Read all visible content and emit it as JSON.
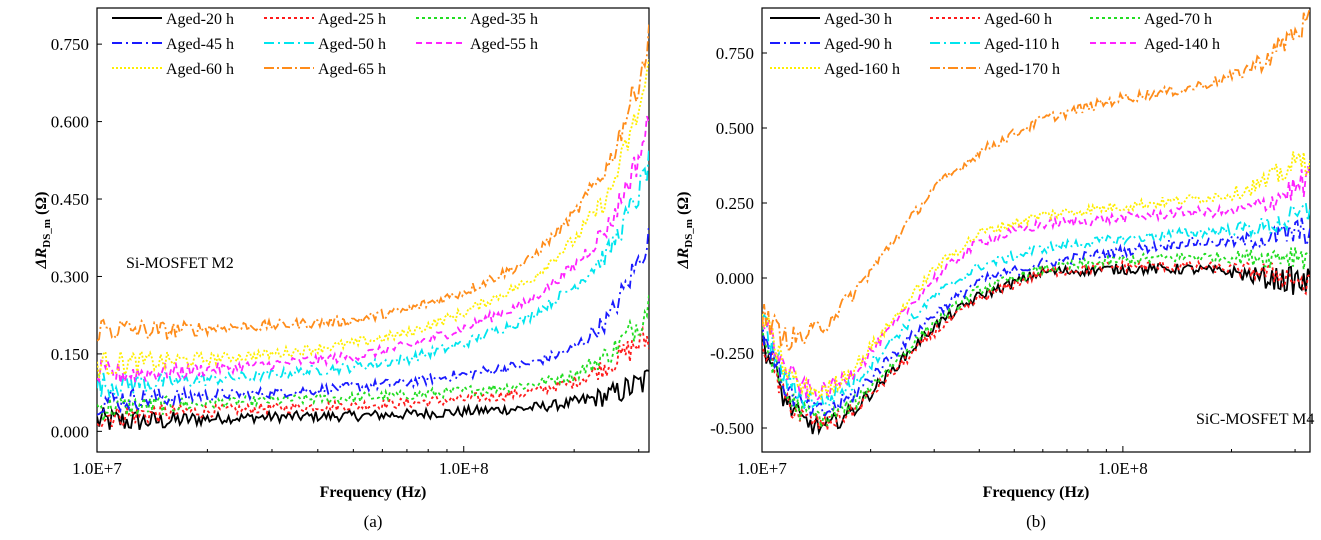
{
  "chart_data": [
    {
      "type": "line",
      "caption": "(a)",
      "xlabel": "Frequency (Hz)",
      "ylabel": "ΔR",
      "ylabel_sub": "DS_m",
      "ylabel_unit": " (Ω)",
      "xscale": "log",
      "xlim": [
        10000000,
        320000000
      ],
      "ylim": [
        -0.04,
        0.82
      ],
      "xticks": [
        {
          "v": 10000000,
          "label": "1.0E+7"
        },
        {
          "v": 100000000,
          "label": "1.0E+8"
        }
      ],
      "yticks": [
        {
          "v": 0.0,
          "label": "0.000"
        },
        {
          "v": 0.15,
          "label": "0.150"
        },
        {
          "v": 0.3,
          "label": "0.300"
        },
        {
          "v": 0.45,
          "label": "0.450"
        },
        {
          "v": 0.6,
          "label": "0.600"
        },
        {
          "v": 0.75,
          "label": "0.750"
        }
      ],
      "annotation": "Si-MOSFET M2",
      "legend_position": "top-left",
      "series": [
        {
          "name": "Aged-20 h",
          "color": "#000000",
          "dash": "",
          "x": [
            10000000.0,
            15000000.0,
            20000000.0,
            30000000.0,
            50000000.0,
            70000000.0,
            100000000.0,
            150000000.0,
            200000000.0,
            250000000.0,
            300000000.0,
            320000000.0
          ],
          "y": [
            0.02,
            0.02,
            0.025,
            0.028,
            0.03,
            0.033,
            0.038,
            0.045,
            0.055,
            0.07,
            0.09,
            0.1
          ]
        },
        {
          "name": "Aged-25 h",
          "color": "#ff1a1a",
          "dash": "3,3",
          "x": [
            10000000.0,
            15000000.0,
            20000000.0,
            30000000.0,
            50000000.0,
            70000000.0,
            100000000.0,
            150000000.0,
            200000000.0,
            250000000.0,
            300000000.0,
            320000000.0
          ],
          "y": [
            0.03,
            0.035,
            0.04,
            0.045,
            0.05,
            0.055,
            0.062,
            0.075,
            0.095,
            0.13,
            0.17,
            0.18
          ]
        },
        {
          "name": "Aged-35 h",
          "color": "#22dd22",
          "dash": "3,3",
          "x": [
            10000000.0,
            15000000.0,
            20000000.0,
            30000000.0,
            50000000.0,
            70000000.0,
            100000000.0,
            150000000.0,
            200000000.0,
            250000000.0,
            300000000.0,
            320000000.0
          ],
          "y": [
            0.045,
            0.05,
            0.055,
            0.06,
            0.065,
            0.07,
            0.078,
            0.09,
            0.11,
            0.15,
            0.21,
            0.25
          ]
        },
        {
          "name": "Aged-45 h",
          "color": "#1a1aff",
          "dash": "10,4,2,4",
          "x": [
            10000000.0,
            15000000.0,
            20000000.0,
            30000000.0,
            50000000.0,
            70000000.0,
            100000000.0,
            150000000.0,
            200000000.0,
            250000000.0,
            300000000.0,
            320000000.0
          ],
          "y": [
            0.06,
            0.065,
            0.07,
            0.075,
            0.085,
            0.095,
            0.11,
            0.13,
            0.16,
            0.22,
            0.33,
            0.38
          ]
        },
        {
          "name": "Aged-50 h",
          "color": "#00e5ee",
          "dash": "10,4,2,4",
          "x": [
            10000000.0,
            15000000.0,
            20000000.0,
            30000000.0,
            50000000.0,
            70000000.0,
            100000000.0,
            150000000.0,
            200000000.0,
            250000000.0,
            300000000.0,
            320000000.0
          ],
          "y": [
            0.09,
            0.095,
            0.1,
            0.11,
            0.125,
            0.14,
            0.17,
            0.22,
            0.28,
            0.35,
            0.46,
            0.52
          ]
        },
        {
          "name": "Aged-55 h",
          "color": "#ff22ff",
          "dash": "6,4",
          "x": [
            10000000.0,
            15000000.0,
            20000000.0,
            30000000.0,
            50000000.0,
            70000000.0,
            100000000.0,
            150000000.0,
            200000000.0,
            250000000.0,
            300000000.0,
            320000000.0
          ],
          "y": [
            0.11,
            0.115,
            0.12,
            0.13,
            0.145,
            0.165,
            0.2,
            0.25,
            0.32,
            0.4,
            0.53,
            0.6
          ]
        },
        {
          "name": "Aged-60 h",
          "color": "#ffee00",
          "dash": "2,2",
          "x": [
            10000000.0,
            15000000.0,
            20000000.0,
            30000000.0,
            50000000.0,
            70000000.0,
            100000000.0,
            150000000.0,
            200000000.0,
            250000000.0,
            300000000.0,
            320000000.0
          ],
          "y": [
            0.13,
            0.135,
            0.14,
            0.15,
            0.17,
            0.19,
            0.23,
            0.29,
            0.37,
            0.46,
            0.62,
            0.7
          ]
        },
        {
          "name": "Aged-65 h",
          "color": "#ff8c1a",
          "dash": "10,3,2,3",
          "x": [
            10000000.0,
            15000000.0,
            20000000.0,
            30000000.0,
            50000000.0,
            70000000.0,
            100000000.0,
            150000000.0,
            200000000.0,
            250000000.0,
            300000000.0,
            320000000.0
          ],
          "y": [
            0.2,
            0.195,
            0.2,
            0.205,
            0.215,
            0.235,
            0.27,
            0.33,
            0.42,
            0.52,
            0.68,
            0.76
          ]
        }
      ]
    },
    {
      "type": "line",
      "caption": "(b)",
      "xlabel": "Frequency (Hz)",
      "ylabel": "ΔR",
      "ylabel_sub": "DS_m",
      "ylabel_unit": " (Ω)",
      "xscale": "log",
      "xlim": [
        10000000,
        330000000
      ],
      "ylim": [
        -0.58,
        0.9
      ],
      "xticks": [
        {
          "v": 10000000,
          "label": "1.0E+7"
        },
        {
          "v": 100000000,
          "label": "1.0E+8"
        }
      ],
      "yticks": [
        {
          "v": -0.5,
          "label": "-0.500"
        },
        {
          "v": -0.25,
          "label": "-0.250"
        },
        {
          "v": 0.0,
          "label": "0.000"
        },
        {
          "v": 0.25,
          "label": "0.250"
        },
        {
          "v": 0.5,
          "label": "0.500"
        },
        {
          "v": 0.75,
          "label": "0.750"
        }
      ],
      "annotation": "SiC-MOSFET M4",
      "legend_position": "top-left",
      "series": [
        {
          "name": "Aged-30 h",
          "color": "#000000",
          "dash": "",
          "x": [
            10000000.0,
            11500000.0,
            13000000.0,
            15000000.0,
            18000000.0,
            22000000.0,
            30000000.0,
            40000000.0,
            60000000.0,
            100000000.0,
            150000000.0,
            200000000.0,
            250000000.0,
            300000000.0,
            330000000.0
          ],
          "y": [
            -0.2,
            -0.4,
            -0.48,
            -0.5,
            -0.44,
            -0.33,
            -0.16,
            -0.06,
            0.02,
            0.03,
            0.03,
            0.02,
            0.0,
            -0.01,
            -0.02
          ]
        },
        {
          "name": "Aged-60 h",
          "color": "#ff1a1a",
          "dash": "3,3",
          "x": [
            10000000.0,
            11500000.0,
            13000000.0,
            15000000.0,
            18000000.0,
            22000000.0,
            30000000.0,
            40000000.0,
            60000000.0,
            100000000.0,
            150000000.0,
            200000000.0,
            250000000.0,
            300000000.0,
            330000000.0
          ],
          "y": [
            -0.2,
            -0.4,
            -0.47,
            -0.49,
            -0.44,
            -0.34,
            -0.18,
            -0.07,
            0.02,
            0.04,
            0.04,
            0.03,
            0.02,
            0.0,
            -0.04
          ]
        },
        {
          "name": "Aged-70 h",
          "color": "#22dd22",
          "dash": "3,3",
          "x": [
            10000000.0,
            11500000.0,
            13000000.0,
            15000000.0,
            18000000.0,
            22000000.0,
            30000000.0,
            40000000.0,
            60000000.0,
            100000000.0,
            150000000.0,
            200000000.0,
            250000000.0,
            300000000.0,
            330000000.0
          ],
          "y": [
            -0.18,
            -0.38,
            -0.45,
            -0.47,
            -0.42,
            -0.31,
            -0.15,
            -0.04,
            0.03,
            0.06,
            0.07,
            0.07,
            0.07,
            0.08,
            0.08
          ]
        },
        {
          "name": "Aged-90 h",
          "color": "#1a1aff",
          "dash": "10,4,2,4",
          "x": [
            10000000.0,
            11500000.0,
            13000000.0,
            15000000.0,
            18000000.0,
            22000000.0,
            30000000.0,
            40000000.0,
            60000000.0,
            100000000.0,
            150000000.0,
            200000000.0,
            250000000.0,
            300000000.0,
            330000000.0
          ],
          "y": [
            -0.16,
            -0.36,
            -0.43,
            -0.45,
            -0.39,
            -0.28,
            -0.12,
            -0.01,
            0.05,
            0.09,
            0.12,
            0.12,
            0.13,
            0.15,
            0.16
          ]
        },
        {
          "name": "Aged-110 h",
          "color": "#00e5ee",
          "dash": "10,4,2,4",
          "x": [
            10000000.0,
            11500000.0,
            13000000.0,
            15000000.0,
            18000000.0,
            22000000.0,
            30000000.0,
            40000000.0,
            60000000.0,
            100000000.0,
            150000000.0,
            200000000.0,
            250000000.0,
            300000000.0,
            330000000.0
          ],
          "y": [
            -0.14,
            -0.33,
            -0.4,
            -0.41,
            -0.35,
            -0.23,
            -0.06,
            0.04,
            0.1,
            0.13,
            0.15,
            0.16,
            0.17,
            0.2,
            0.22
          ]
        },
        {
          "name": "Aged-140 h",
          "color": "#ff22ff",
          "dash": "6,4",
          "x": [
            10000000.0,
            11500000.0,
            13000000.0,
            15000000.0,
            18000000.0,
            22000000.0,
            30000000.0,
            40000000.0,
            60000000.0,
            100000000.0,
            150000000.0,
            200000000.0,
            250000000.0,
            300000000.0,
            330000000.0
          ],
          "y": [
            -0.12,
            -0.3,
            -0.37,
            -0.38,
            -0.31,
            -0.19,
            0.0,
            0.12,
            0.18,
            0.2,
            0.22,
            0.22,
            0.25,
            0.3,
            0.33
          ]
        },
        {
          "name": "Aged-160 h",
          "color": "#ffee00",
          "dash": "2,2",
          "x": [
            10000000.0,
            11500000.0,
            13000000.0,
            15000000.0,
            18000000.0,
            22000000.0,
            30000000.0,
            40000000.0,
            60000000.0,
            100000000.0,
            150000000.0,
            200000000.0,
            250000000.0,
            300000000.0,
            330000000.0
          ],
          "y": [
            -0.12,
            -0.3,
            -0.37,
            -0.38,
            -0.3,
            -0.17,
            0.03,
            0.15,
            0.21,
            0.24,
            0.26,
            0.28,
            0.32,
            0.38,
            0.4
          ]
        },
        {
          "name": "Aged-170 h",
          "color": "#ff8c1a",
          "dash": "10,3,2,3",
          "x": [
            10000000.0,
            11500000.0,
            13000000.0,
            15000000.0,
            18000000.0,
            22000000.0,
            30000000.0,
            40000000.0,
            60000000.0,
            100000000.0,
            150000000.0,
            200000000.0,
            250000000.0,
            300000000.0,
            330000000.0
          ],
          "y": [
            -0.12,
            -0.2,
            -0.2,
            -0.15,
            -0.05,
            0.09,
            0.3,
            0.42,
            0.53,
            0.6,
            0.63,
            0.67,
            0.73,
            0.82,
            0.86
          ]
        }
      ]
    }
  ]
}
